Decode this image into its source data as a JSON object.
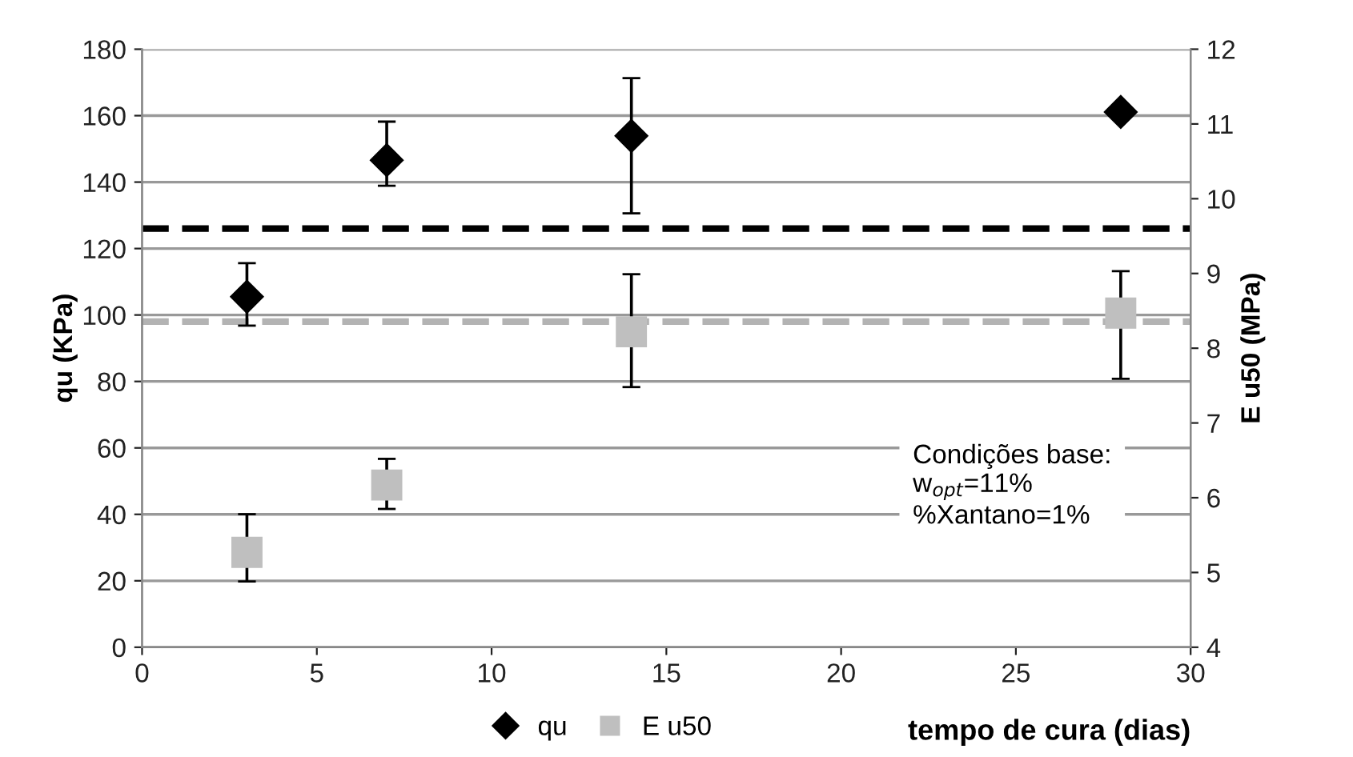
{
  "chart_data": {
    "type": "scatter",
    "xlabel": "tempo de cura (dias)",
    "ylabel": "qu (KPa)",
    "y2label": "E u50 (MPa)",
    "xlim": [
      0,
      30
    ],
    "xticks": [
      0,
      5,
      10,
      15,
      20,
      25,
      30
    ],
    "ylim": [
      0,
      180
    ],
    "yticks": [
      0,
      20,
      40,
      60,
      80,
      100,
      120,
      140,
      160,
      180
    ],
    "y2lim": [
      4,
      12
    ],
    "y2ticks": [
      4,
      5,
      6,
      7,
      8,
      9,
      10,
      11,
      12
    ],
    "grid": "y",
    "legend": "bottom",
    "series": [
      {
        "name": "qu",
        "color": "#000000",
        "marker": "diamond",
        "x": [
          3,
          7,
          14,
          28
        ],
        "values": [
          105.5,
          146.6,
          153.9,
          161.1
        ],
        "errors": [
          [
            96.8,
            115.6
          ],
          [
            138.9,
            158.2
          ],
          [
            130.6,
            171.3
          ],
          null
        ]
      },
      {
        "name": "E u50",
        "color": "#bfbfbf",
        "marker": "square",
        "axis": "y2",
        "x": [
          3,
          7,
          14,
          28
        ],
        "values": [
          5.27,
          6.17,
          8.22,
          8.47
        ],
        "errors": [
          [
            4.88,
            5.78
          ],
          [
            5.85,
            6.52
          ],
          [
            7.48,
            8.99
          ],
          [
            7.59,
            9.03
          ]
        ]
      }
    ],
    "ref_lines": [
      {
        "axis": "y",
        "value": 126,
        "color": "#000000",
        "line_style": "dashed",
        "label": null
      },
      {
        "axis": "y",
        "value": 98,
        "color": "#b3b3b3",
        "line_style": "dashed",
        "label": null
      }
    ],
    "annotations": [
      "Condições base:\nw$_{opt}$=11%\n%Xantano=1%"
    ]
  }
}
